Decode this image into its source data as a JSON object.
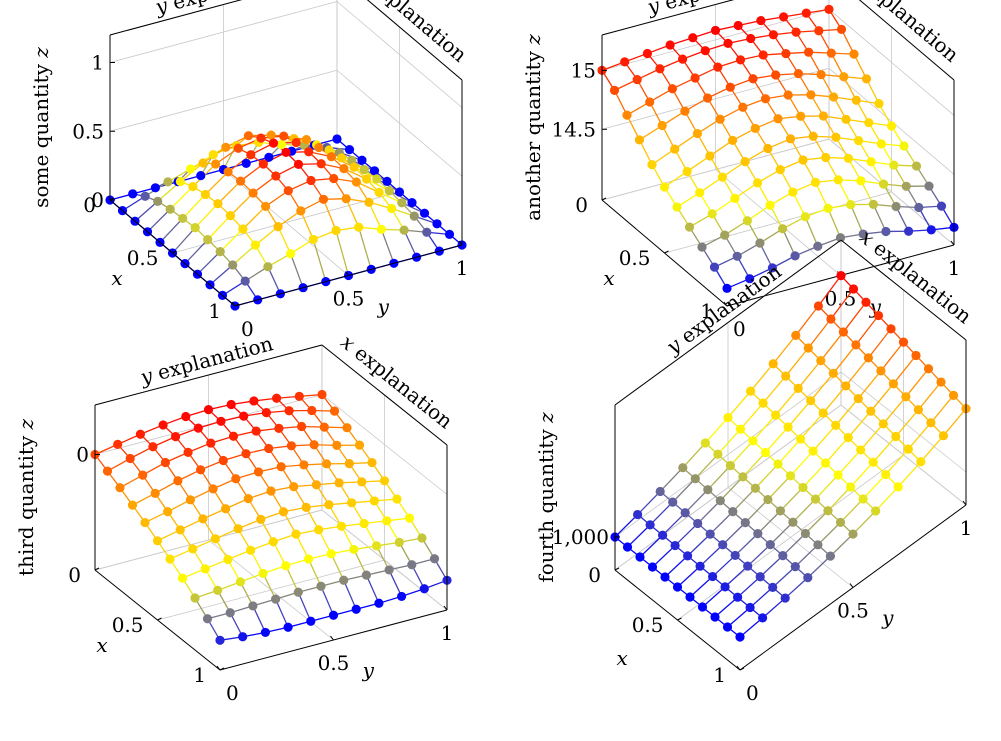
{
  "chart_data": [
    {
      "type": "surface",
      "xlabel_var": "x",
      "xlabel_text": "explanation",
      "ylabel_var": "y",
      "ylabel_text": "explanation",
      "zlabel_text": "some quantity",
      "zlabel_var": "z",
      "x_ticks": [
        "0",
        "0.5",
        "1"
      ],
      "y_ticks": [
        "0",
        "0.5",
        "1"
      ],
      "z_ticks": [
        {
          "v": 0,
          "label": "0"
        },
        {
          "v": 0.5,
          "label": "0.5"
        },
        {
          "v": 1,
          "label": "1"
        }
      ],
      "zlim": [
        0,
        1.2
      ],
      "grid": true,
      "x": [
        0,
        0.1,
        0.2,
        0.3,
        0.4,
        0.5,
        0.6,
        0.7,
        0.8,
        0.9,
        1
      ],
      "y": [
        0,
        0.1,
        0.2,
        0.3,
        0.4,
        0.5,
        0.6,
        0.7,
        0.8,
        0.9,
        1
      ],
      "colormap": [
        "#0000ff",
        "#ffff00",
        "#ffa500",
        "#ff0000"
      ],
      "z": [
        [
          0.0,
          0.0,
          0.0,
          0.0,
          0.0,
          0.0,
          0.0,
          0.0,
          0.0,
          0.0,
          0.0
        ],
        [
          0.0,
          0.06,
          0.12,
          0.17,
          0.23,
          0.25,
          0.23,
          0.17,
          0.12,
          0.06,
          0.0
        ],
        [
          0.0,
          0.1,
          0.2,
          0.29,
          0.36,
          0.4,
          0.36,
          0.29,
          0.2,
          0.1,
          0.0
        ],
        [
          0.0,
          0.12,
          0.24,
          0.36,
          0.43,
          0.46,
          0.43,
          0.36,
          0.24,
          0.12,
          0.0
        ],
        [
          0.0,
          0.13,
          0.26,
          0.38,
          0.46,
          0.5,
          0.46,
          0.38,
          0.26,
          0.13,
          0.0
        ],
        [
          0.0,
          0.14,
          0.27,
          0.39,
          0.47,
          0.51,
          0.47,
          0.39,
          0.27,
          0.14,
          0.0
        ],
        [
          0.0,
          0.13,
          0.26,
          0.38,
          0.46,
          0.5,
          0.46,
          0.38,
          0.26,
          0.13,
          0.0
        ],
        [
          0.0,
          0.12,
          0.24,
          0.36,
          0.43,
          0.46,
          0.43,
          0.36,
          0.24,
          0.12,
          0.0
        ],
        [
          0.0,
          0.1,
          0.2,
          0.29,
          0.36,
          0.4,
          0.36,
          0.29,
          0.2,
          0.1,
          0.0
        ],
        [
          0.0,
          0.06,
          0.12,
          0.17,
          0.23,
          0.25,
          0.23,
          0.17,
          0.12,
          0.06,
          0.0
        ],
        [
          0.0,
          0.0,
          0.0,
          0.0,
          0.0,
          0.0,
          0.0,
          0.0,
          0.0,
          0.0,
          0.0
        ]
      ]
    },
    {
      "type": "surface",
      "xlabel_var": "x",
      "xlabel_text": "explanation",
      "ylabel_var": "y",
      "ylabel_text": "explanation",
      "zlabel_text": "another quantity",
      "zlabel_var": "z",
      "x_ticks": [
        "0",
        "0.5",
        "1"
      ],
      "y_ticks": [
        "0",
        "0.5",
        "1"
      ],
      "z_ticks": [
        {
          "v": 14.5,
          "label": "14.5"
        },
        {
          "v": 15,
          "label": "15"
        }
      ],
      "zlim": [
        13.9,
        15.3
      ],
      "grid": true,
      "x": [
        0,
        0.1,
        0.2,
        0.3,
        0.4,
        0.5,
        0.6,
        0.7,
        0.8,
        0.9,
        1
      ],
      "y": [
        0,
        0.1,
        0.2,
        0.3,
        0.4,
        0.5,
        0.6,
        0.7,
        0.8,
        0.9,
        1
      ],
      "colormap": [
        "#0000ff",
        "#ffff00",
        "#ffa500",
        "#ff0000"
      ],
      "z": [
        [
          15.0,
          15.02,
          15.04,
          15.06,
          15.07,
          15.08,
          15.07,
          15.06,
          15.04,
          15.02,
          15.0
        ],
        [
          14.92,
          14.96,
          15.0,
          15.03,
          15.05,
          15.06,
          15.05,
          15.03,
          15.0,
          14.96,
          14.92
        ],
        [
          14.8,
          14.86,
          14.92,
          14.96,
          15.0,
          15.01,
          15.0,
          14.96,
          14.92,
          14.86,
          14.8
        ],
        [
          14.68,
          14.75,
          14.82,
          14.88,
          14.92,
          14.94,
          14.92,
          14.88,
          14.82,
          14.75,
          14.68
        ],
        [
          14.56,
          14.64,
          14.72,
          14.79,
          14.84,
          14.86,
          14.84,
          14.79,
          14.72,
          14.64,
          14.56
        ],
        [
          14.46,
          14.54,
          14.62,
          14.7,
          14.75,
          14.78,
          14.75,
          14.7,
          14.62,
          14.54,
          14.46
        ],
        [
          14.38,
          14.45,
          14.53,
          14.61,
          14.67,
          14.7,
          14.67,
          14.61,
          14.53,
          14.45,
          14.38
        ],
        [
          14.3,
          14.36,
          14.44,
          14.52,
          14.58,
          14.61,
          14.58,
          14.52,
          14.44,
          14.36,
          14.3
        ],
        [
          14.22,
          14.27,
          14.34,
          14.42,
          14.48,
          14.51,
          14.48,
          14.42,
          14.34,
          14.27,
          14.22
        ],
        [
          14.14,
          14.18,
          14.24,
          14.31,
          14.36,
          14.38,
          14.36,
          14.31,
          14.24,
          14.18,
          14.14
        ],
        [
          14.05,
          14.08,
          14.12,
          14.17,
          14.2,
          14.22,
          14.2,
          14.17,
          14.12,
          14.08,
          14.05
        ]
      ]
    },
    {
      "type": "surface",
      "xlabel_var": "x",
      "xlabel_text": "explanation",
      "ylabel_var": "y",
      "ylabel_text": "explanation",
      "zlabel_text": "third quantity",
      "zlabel_var": "z",
      "x_ticks": [
        "0",
        "0.5",
        "1"
      ],
      "y_ticks": [
        "0",
        "0.5",
        "1"
      ],
      "z_ticks": [
        {
          "v": 0,
          "label": "0"
        }
      ],
      "zlim": [
        -1.4,
        0.6
      ],
      "grid": true,
      "x": [
        0,
        0.1,
        0.2,
        0.3,
        0.4,
        0.5,
        0.6,
        0.7,
        0.8,
        0.9,
        1
      ],
      "y": [
        0,
        0.1,
        0.2,
        0.3,
        0.4,
        0.5,
        0.6,
        0.7,
        0.8,
        0.9,
        1
      ],
      "colormap": [
        "#0000ff",
        "#ffff00",
        "#ffa500",
        "#ff0000"
      ],
      "z": [
        [
          0.0,
          0.05,
          0.1,
          0.14,
          0.17,
          0.18,
          0.17,
          0.14,
          0.1,
          0.05,
          0.0
        ],
        [
          -0.08,
          0.0,
          0.07,
          0.12,
          0.15,
          0.16,
          0.15,
          0.12,
          0.07,
          0.0,
          -0.08
        ],
        [
          -0.16,
          -0.08,
          0.0,
          0.05,
          0.09,
          0.1,
          0.09,
          0.05,
          0.0,
          -0.08,
          -0.16
        ],
        [
          -0.25,
          -0.18,
          -0.1,
          -0.04,
          0.0,
          0.01,
          0.0,
          -0.04,
          -0.1,
          -0.18,
          -0.25
        ],
        [
          -0.34,
          -0.28,
          -0.21,
          -0.15,
          -0.1,
          -0.09,
          -0.1,
          -0.15,
          -0.21,
          -0.28,
          -0.34
        ],
        [
          -0.44,
          -0.38,
          -0.32,
          -0.27,
          -0.22,
          -0.2,
          -0.22,
          -0.27,
          -0.32,
          -0.38,
          -0.44
        ],
        [
          -0.54,
          -0.49,
          -0.44,
          -0.39,
          -0.35,
          -0.33,
          -0.35,
          -0.39,
          -0.44,
          -0.49,
          -0.54
        ],
        [
          -0.65,
          -0.61,
          -0.57,
          -0.53,
          -0.5,
          -0.48,
          -0.5,
          -0.53,
          -0.57,
          -0.61,
          -0.65
        ],
        [
          -0.77,
          -0.75,
          -0.72,
          -0.69,
          -0.67,
          -0.66,
          -0.67,
          -0.69,
          -0.72,
          -0.75,
          -0.77
        ],
        [
          -0.9,
          -0.9,
          -0.89,
          -0.88,
          -0.87,
          -0.87,
          -0.87,
          -0.88,
          -0.89,
          -0.9,
          -0.9
        ],
        [
          -1.04,
          -1.07,
          -1.09,
          -1.1,
          -1.1,
          -1.1,
          -1.1,
          -1.1,
          -1.09,
          -1.07,
          -1.04
        ]
      ]
    },
    {
      "type": "surface",
      "xlabel_var": "x",
      "xlabel_text": "explanation",
      "ylabel_var": "y",
      "ylabel_text": "explanation",
      "zlabel_text": "fourth quantity",
      "zlabel_var": "z",
      "x_ticks": [
        "0",
        "0.5",
        "1"
      ],
      "y_ticks": [
        "0",
        "0.5",
        "1"
      ],
      "z_ticks": [
        {
          "v": 1000,
          "label": "1,000"
        }
      ],
      "zlim": [
        0,
        5000
      ],
      "grid": true,
      "x": [
        0,
        0.1,
        0.2,
        0.3,
        0.4,
        0.5,
        0.6,
        0.7,
        0.8,
        0.9,
        1
      ],
      "y": [
        0,
        0.1,
        0.2,
        0.3,
        0.4,
        0.5,
        0.6,
        0.7,
        0.8,
        0.9,
        1
      ],
      "colormap": [
        "#0000ff",
        "#ffff00",
        "#ffa500",
        "#ff0000"
      ],
      "z": [
        [
          1000,
          1180,
          1380,
          1600,
          1850,
          2120,
          2420,
          2750,
          3110,
          3500,
          3920
        ],
        [
          1000,
          1170,
          1360,
          1570,
          1810,
          2070,
          2360,
          2680,
          3030,
          3410,
          3820
        ],
        [
          1000,
          1160,
          1340,
          1540,
          1770,
          2020,
          2300,
          2610,
          2950,
          3320,
          3720
        ],
        [
          1000,
          1150,
          1320,
          1510,
          1730,
          1970,
          2240,
          2540,
          2870,
          3230,
          3620
        ],
        [
          1000,
          1140,
          1300,
          1480,
          1690,
          1920,
          2180,
          2470,
          2790,
          3140,
          3520
        ],
        [
          1000,
          1130,
          1280,
          1450,
          1650,
          1870,
          2120,
          2400,
          2710,
          3050,
          3420
        ],
        [
          1000,
          1120,
          1260,
          1420,
          1610,
          1820,
          2060,
          2330,
          2630,
          2960,
          3320
        ],
        [
          1000,
          1110,
          1240,
          1390,
          1570,
          1770,
          2000,
          2260,
          2550,
          2870,
          3220
        ],
        [
          1000,
          1100,
          1220,
          1360,
          1530,
          1720,
          1940,
          2190,
          2470,
          2780,
          3120
        ],
        [
          1000,
          1090,
          1200,
          1330,
          1490,
          1670,
          1880,
          2120,
          2390,
          2690,
          3020
        ],
        [
          1000,
          1080,
          1180,
          1300,
          1450,
          1620,
          1820,
          2050,
          2310,
          2600,
          2920
        ]
      ]
    }
  ]
}
